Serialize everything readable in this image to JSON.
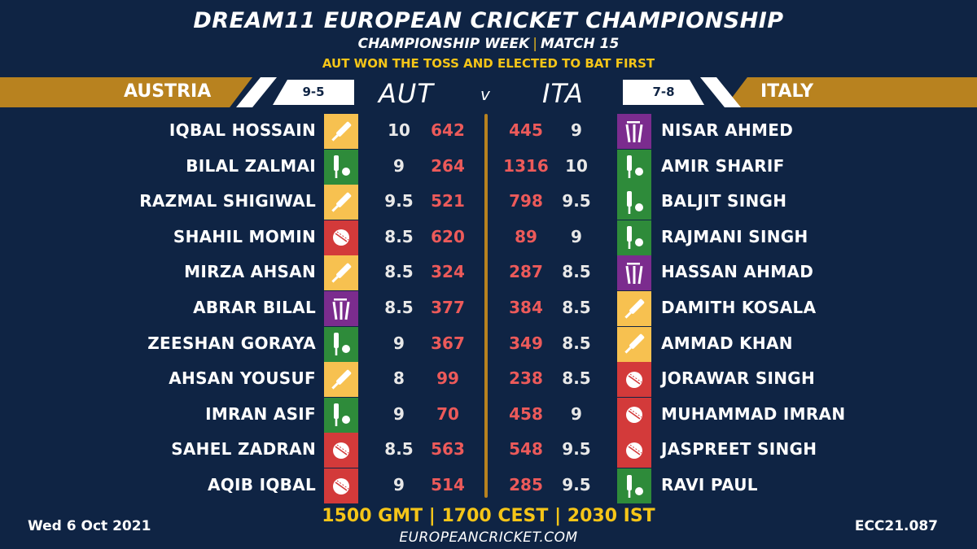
{
  "header": {
    "title": "DREAM11 EUROPEAN CRICKET CHAMPIONSHIP",
    "subtitle_left": "CHAMPIONSHIP WEEK",
    "subtitle_sep": "|",
    "subtitle_right": "MATCH 15",
    "toss": "AUT WON THE TOSS AND ELECTED TO BAT FIRST"
  },
  "teams": {
    "left": {
      "name": "AUSTRIA",
      "abbr": "AUT",
      "record": "9-5"
    },
    "right": {
      "name": "ITALY",
      "abbr": "ITA",
      "record": "7-8"
    },
    "vs": "v"
  },
  "role_icons": {
    "bat": "cricket-bat-icon",
    "bowl": "cricket-ball-icon",
    "ar": "bat-and-ball-icon",
    "wk": "wicket-stumps-icon"
  },
  "colors": {
    "background": "#0f2444",
    "gold": "#b8821f",
    "yellow": "#f5c518",
    "points": "#ec5a5a",
    "bat": "#f7c150",
    "bowl": "#d33a3a",
    "allrounder": "#2e8b3a",
    "keeper": "#7b2c8e"
  },
  "rows": [
    {
      "left": {
        "name": "IQBAL HOSSAIN",
        "role": "bat",
        "credit": "10",
        "points": "642"
      },
      "right": {
        "name": "NISAR AHMED",
        "role": "wk",
        "credit": "9",
        "points": "445"
      }
    },
    {
      "left": {
        "name": "BILAL ZALMAI",
        "role": "ar",
        "credit": "9",
        "points": "264"
      },
      "right": {
        "name": "AMIR SHARIF",
        "role": "ar",
        "credit": "10",
        "points": "1316"
      }
    },
    {
      "left": {
        "name": "RAZMAL SHIGIWAL",
        "role": "bat",
        "credit": "9.5",
        "points": "521"
      },
      "right": {
        "name": "BALJIT SINGH",
        "role": "ar",
        "credit": "9.5",
        "points": "798"
      }
    },
    {
      "left": {
        "name": "SHAHIL MOMIN",
        "role": "bowl",
        "credit": "8.5",
        "points": "620"
      },
      "right": {
        "name": "RAJMANI SINGH",
        "role": "ar",
        "credit": "9",
        "points": "89"
      }
    },
    {
      "left": {
        "name": "MIRZA AHSAN",
        "role": "bat",
        "credit": "8.5",
        "points": "324"
      },
      "right": {
        "name": "HASSAN AHMAD",
        "role": "wk",
        "credit": "8.5",
        "points": "287"
      }
    },
    {
      "left": {
        "name": "ABRAR BILAL",
        "role": "wk",
        "credit": "8.5",
        "points": "377"
      },
      "right": {
        "name": "DAMITH KOSALA",
        "role": "bat",
        "credit": "8.5",
        "points": "384"
      }
    },
    {
      "left": {
        "name": "ZEESHAN GORAYA",
        "role": "ar",
        "credit": "9",
        "points": "367"
      },
      "right": {
        "name": "AMMAD KHAN",
        "role": "bat",
        "credit": "8.5",
        "points": "349"
      }
    },
    {
      "left": {
        "name": "AHSAN YOUSUF",
        "role": "bat",
        "credit": "8",
        "points": "99"
      },
      "right": {
        "name": "JORAWAR SINGH",
        "role": "bowl",
        "credit": "8.5",
        "points": "238"
      }
    },
    {
      "left": {
        "name": "IMRAN ASIF",
        "role": "ar",
        "credit": "9",
        "points": "70"
      },
      "right": {
        "name": "MUHAMMAD IMRAN",
        "role": "bowl",
        "credit": "9",
        "points": "458"
      }
    },
    {
      "left": {
        "name": "SAHEL ZADRAN",
        "role": "bowl",
        "credit": "8.5",
        "points": "563"
      },
      "right": {
        "name": "JASPREET SINGH",
        "role": "bowl",
        "credit": "9.5",
        "points": "548"
      }
    },
    {
      "left": {
        "name": "AQIB IQBAL",
        "role": "bowl",
        "credit": "9",
        "points": "514"
      },
      "right": {
        "name": "RAVI PAUL",
        "role": "ar",
        "credit": "9.5",
        "points": "285"
      }
    }
  ],
  "footer": {
    "date": "Wed 6 Oct 2021",
    "times": "1500 GMT | 1700 CEST | 2030 IST",
    "website": "EUROPEANCRICKET.COM",
    "code": "ECC21.087"
  }
}
